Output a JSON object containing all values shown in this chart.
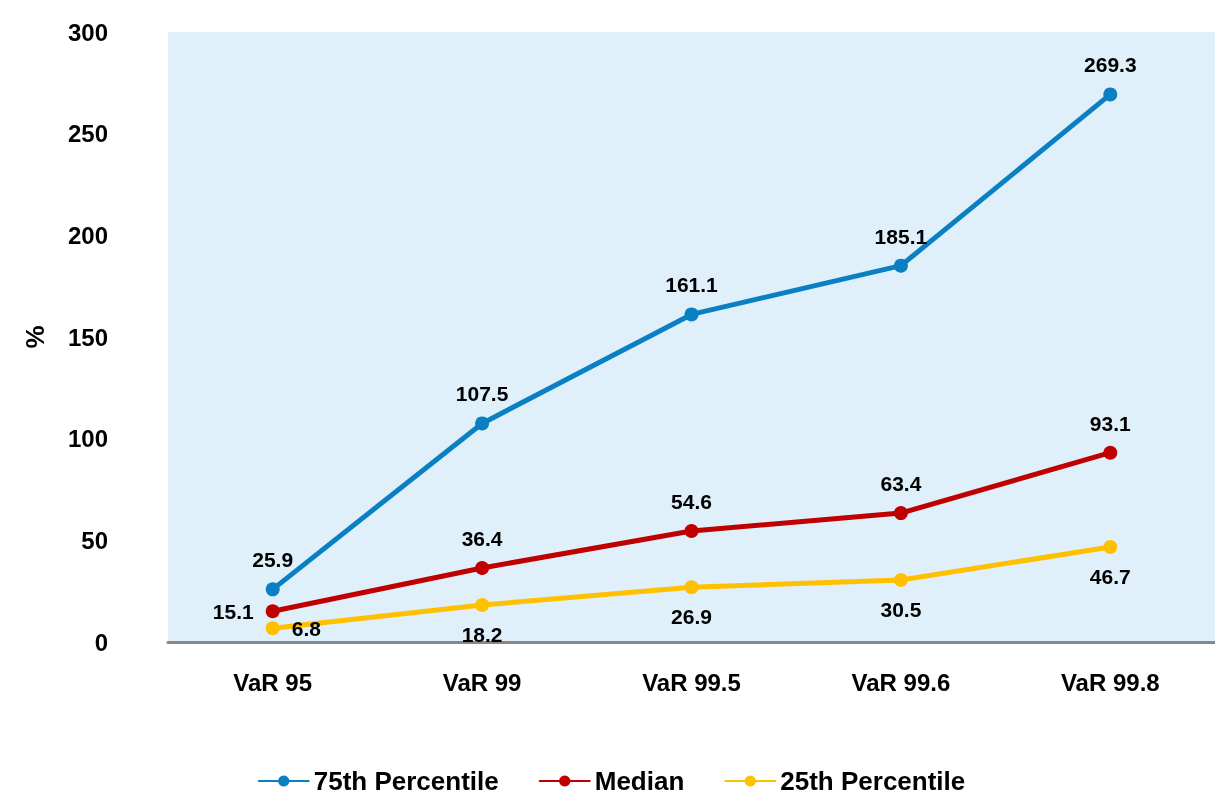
{
  "chart_data": {
    "type": "line",
    "ylabel": "%",
    "categories": [
      "VaR 95",
      "VaR 99",
      "VaR 99.5",
      "VaR 99.6",
      "VaR 99.8"
    ],
    "series": [
      {
        "name": "75th Percentile",
        "color": "#0a7fc2",
        "values": [
          25.9,
          107.5,
          161.1,
          185.1,
          269.3
        ]
      },
      {
        "name": "Median",
        "color": "#c00000",
        "values": [
          15.1,
          36.4,
          54.6,
          63.4,
          93.1
        ]
      },
      {
        "name": "25th Percentile",
        "color": "#ffc000",
        "values": [
          6.8,
          18.2,
          26.9,
          30.5,
          46.7
        ]
      }
    ],
    "ylim": [
      0,
      300
    ],
    "yticks": [
      0,
      50,
      100,
      150,
      200,
      250,
      300
    ],
    "grid": false,
    "legend": "bottom",
    "marker": "circle",
    "line_style": "solid",
    "data_labels": true
  }
}
